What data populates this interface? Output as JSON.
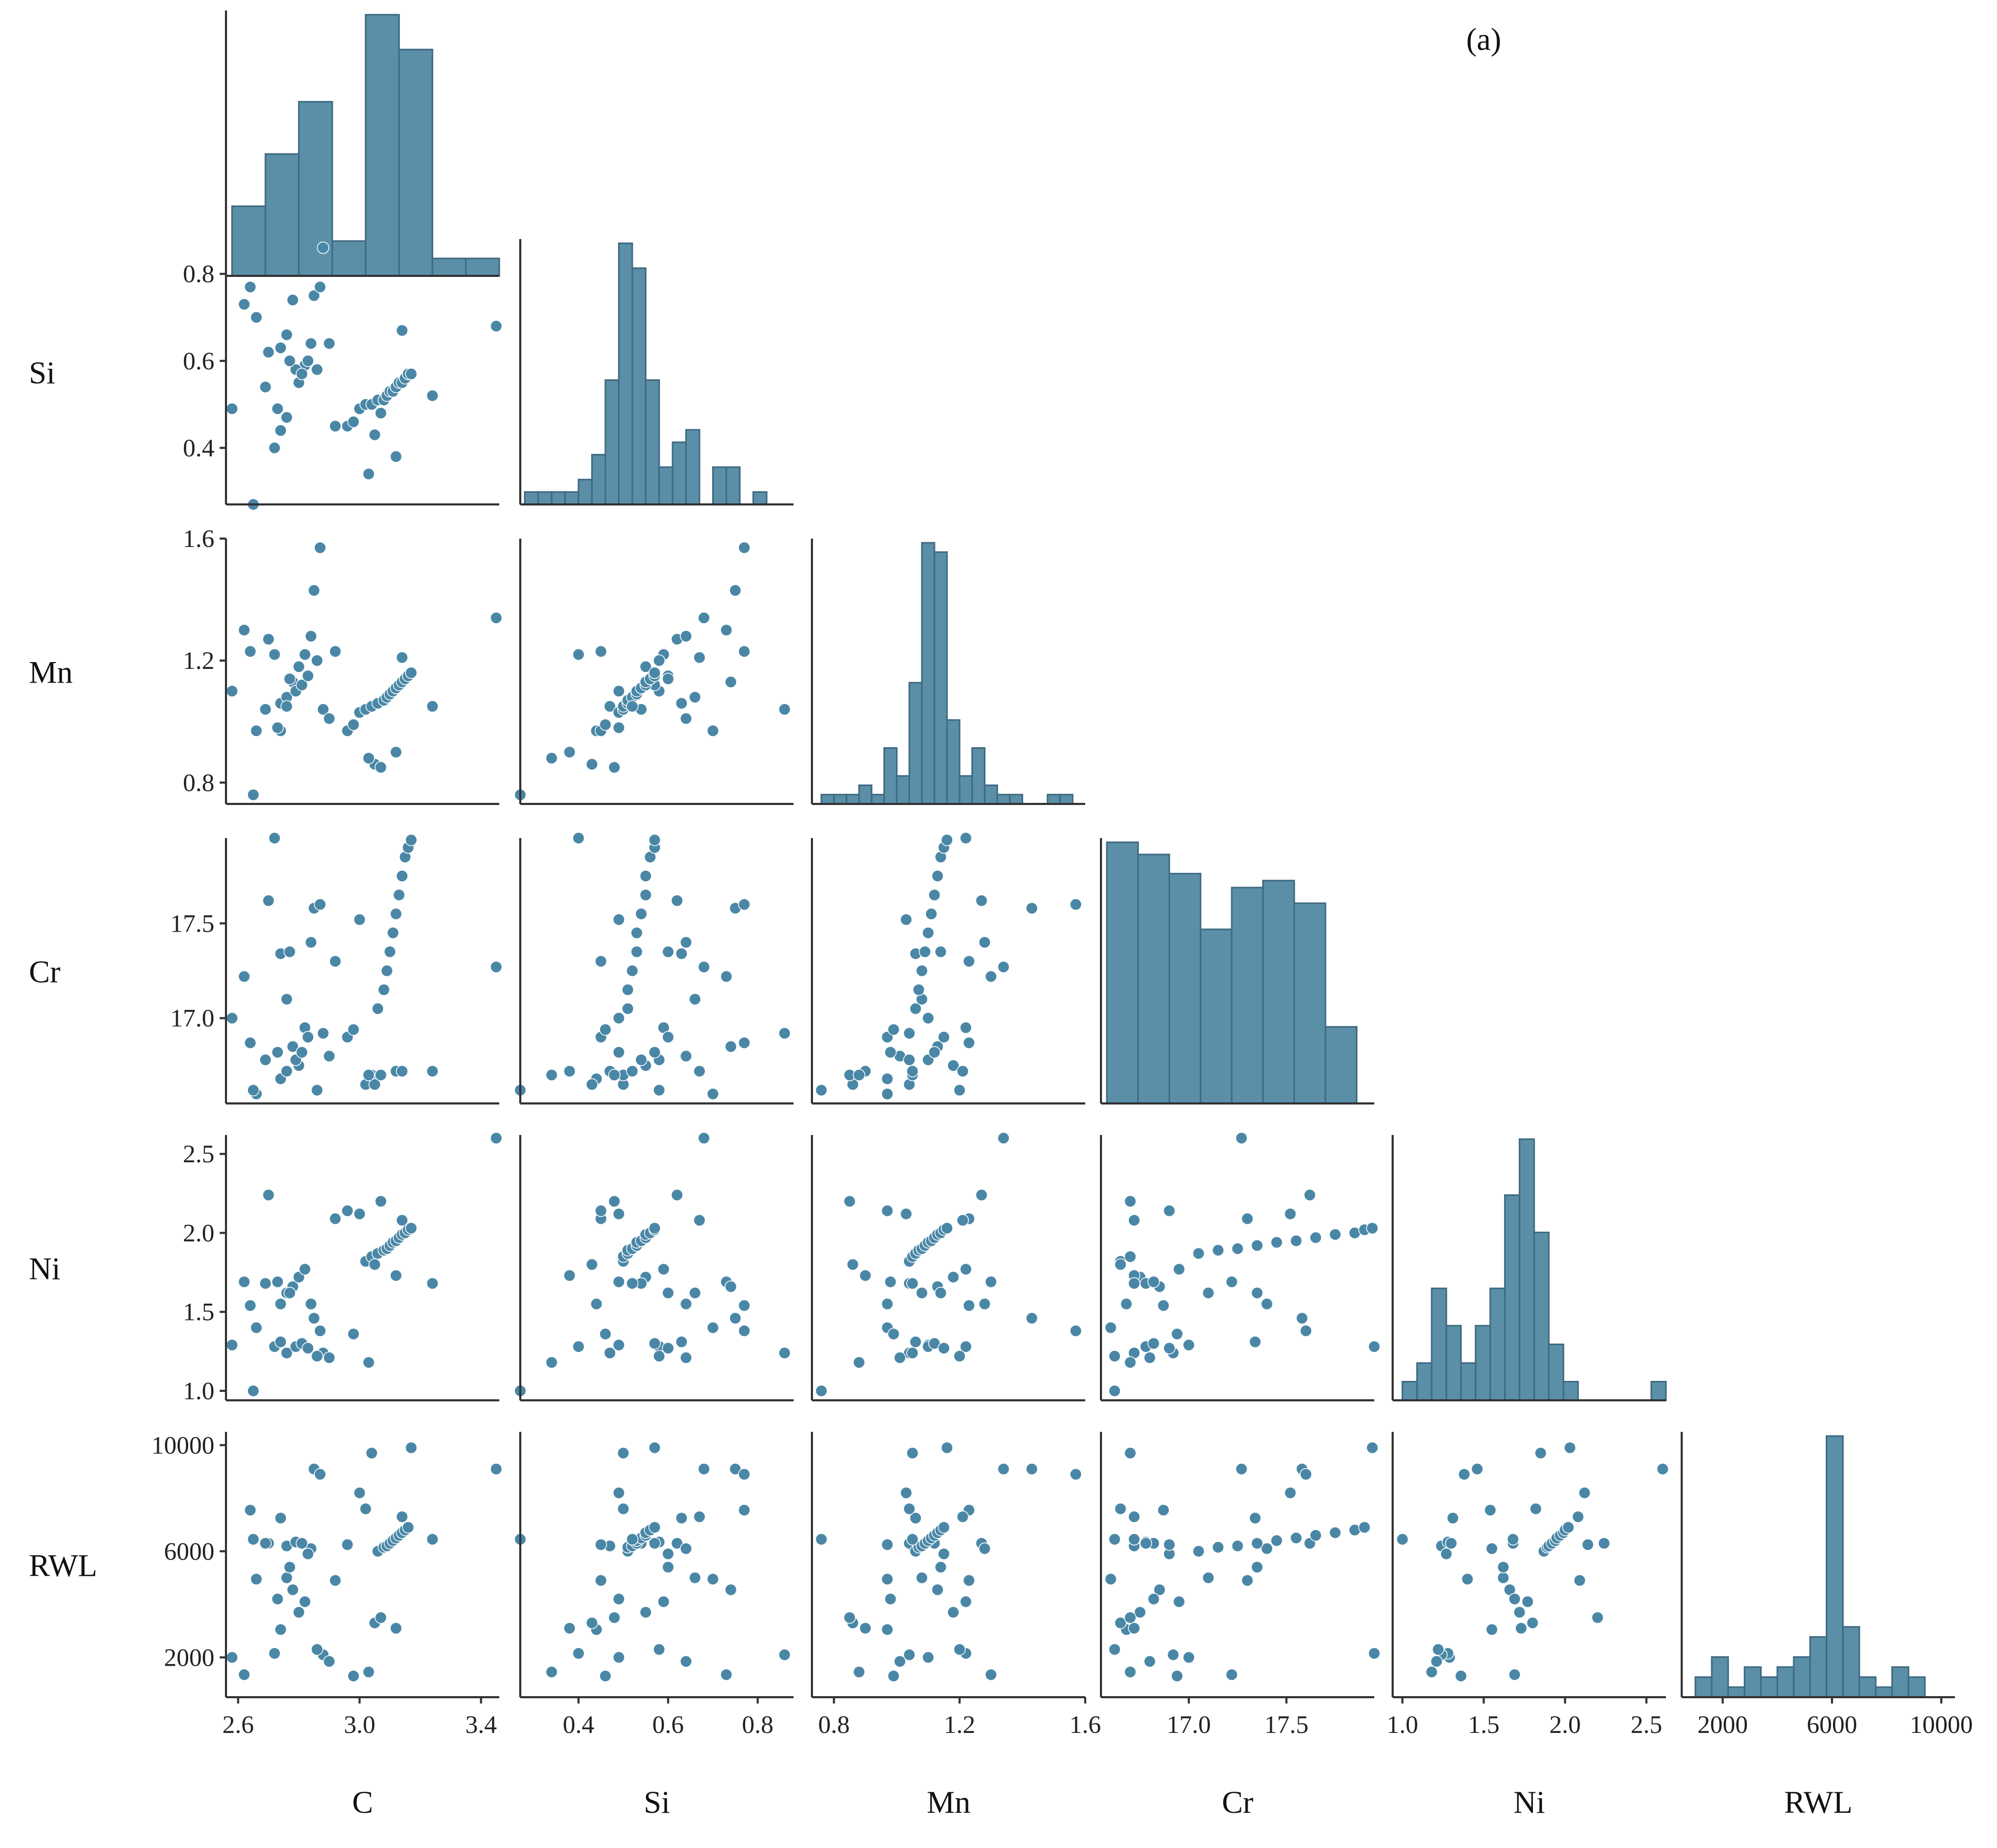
{
  "panel_label": "(a)",
  "colors": {
    "bar": "#5b8fa8",
    "point": "#4a87a6",
    "axis": "#333333"
  },
  "variables": [
    "C",
    "Si",
    "Mn",
    "Cr",
    "Ni",
    "RWL"
  ],
  "chart_data": {
    "type": "pairplot",
    "corner": true,
    "axes": {
      "C": {
        "label": "C",
        "range": [
          2.56,
          3.46
        ],
        "ticks": [
          2.6,
          3.0,
          3.4
        ],
        "tick_labels": [
          "2.6",
          "3.0",
          "3.4"
        ]
      },
      "Si": {
        "label": "Si",
        "range": [
          0.27,
          0.88
        ],
        "ticks": [
          0.4,
          0.6,
          0.8
        ],
        "tick_labels": [
          "0.4",
          "0.6",
          "0.8"
        ]
      },
      "Mn": {
        "label": "Mn",
        "range": [
          0.73,
          1.6
        ],
        "ticks": [
          0.8,
          1.2,
          1.6
        ],
        "tick_labels": [
          "0.8",
          "1.2",
          "1.6"
        ]
      },
      "Cr": {
        "label": "Cr",
        "range": [
          16.55,
          17.95
        ],
        "ticks": [
          17.0,
          17.5
        ],
        "tick_labels": [
          "17.0",
          "17.5"
        ]
      },
      "Ni": {
        "label": "Ni",
        "range": [
          0.94,
          2.62
        ],
        "ticks": [
          1.0,
          1.5,
          2.0,
          2.5
        ],
        "tick_labels": [
          "1.0",
          "1.5",
          "2.0",
          "2.5"
        ]
      },
      "RWL": {
        "label": "RWL",
        "range": [
          500,
          10500
        ],
        "ticks": [
          2000,
          6000,
          10000
        ],
        "tick_labels": [
          "2000",
          "6000",
          "10000"
        ]
      }
    },
    "histograms": {
      "C": {
        "edges": [
          2.58,
          2.69,
          2.8,
          2.91,
          3.02,
          3.13,
          3.24,
          3.35,
          3.46
        ],
        "counts": [
          4,
          7,
          10,
          2,
          15,
          13,
          1,
          1
        ]
      },
      "Si": {
        "edges": [
          0.28,
          0.31,
          0.34,
          0.37,
          0.4,
          0.43,
          0.46,
          0.49,
          0.52,
          0.55,
          0.58,
          0.61,
          0.64,
          0.67,
          0.7,
          0.73,
          0.76,
          0.79,
          0.82,
          0.85
        ],
        "counts": [
          1,
          1,
          1,
          1,
          2,
          4,
          10,
          21,
          19,
          10,
          3,
          5,
          6,
          0,
          3,
          3,
          0,
          1,
          0
        ]
      },
      "Mn": {
        "edges": [
          0.76,
          0.8,
          0.84,
          0.88,
          0.92,
          0.96,
          1.0,
          1.04,
          1.08,
          1.12,
          1.16,
          1.2,
          1.24,
          1.28,
          1.32,
          1.36,
          1.4,
          1.44,
          1.48,
          1.52,
          1.56
        ],
        "counts": [
          1,
          1,
          1,
          2,
          1,
          6,
          3,
          13,
          28,
          27,
          9,
          3,
          6,
          2,
          1,
          1,
          0,
          0,
          1,
          1
        ]
      },
      "Cr": {
        "edges": [
          16.58,
          16.74,
          16.9,
          17.06,
          17.22,
          17.38,
          17.54,
          17.7,
          17.86
        ],
        "counts": [
          15,
          14.3,
          13.2,
          10,
          12.4,
          12.8,
          11.5,
          4.4
        ]
      },
      "Ni": {
        "edges": [
          1.0,
          1.09,
          1.18,
          1.27,
          1.36,
          1.45,
          1.54,
          1.63,
          1.72,
          1.81,
          1.9,
          1.99,
          2.08,
          2.17,
          2.26,
          2.35,
          2.44,
          2.53,
          2.62
        ],
        "counts": [
          1,
          2,
          6,
          4,
          2,
          4,
          6,
          11,
          14,
          9,
          3,
          1,
          0,
          0,
          0,
          0,
          0,
          1
        ]
      },
      "RWL": {
        "edges": [
          1000,
          1600,
          2200,
          2800,
          3400,
          4000,
          4600,
          5200,
          5800,
          6400,
          7000,
          7600,
          8200,
          8800,
          9400,
          10000
        ],
        "counts": [
          2,
          4,
          1,
          3,
          2,
          3,
          4,
          6,
          26,
          7,
          2,
          1,
          3,
          2,
          0
        ]
      }
    },
    "samples": {
      "C": [
        2.62,
        2.64,
        2.66,
        2.58,
        2.7,
        2.72,
        2.74,
        2.76,
        2.78,
        2.8,
        2.82,
        2.84,
        2.85,
        2.87,
        2.88,
        2.9,
        2.74,
        2.76,
        2.79,
        2.81,
        2.83,
        2.86,
        2.92,
        2.65,
        2.69,
        2.73,
        2.77,
        2.96,
        3.0,
        3.02,
        3.04,
        3.06,
        3.08,
        3.09,
        3.1,
        3.11,
        3.12,
        3.13,
        3.14,
        3.15,
        3.16,
        3.17,
        3.05,
        3.07,
        3.12,
        3.24,
        3.45,
        2.98,
        3.03,
        3.14
      ],
      "Si": [
        0.73,
        0.77,
        0.7,
        0.49,
        0.62,
        0.4,
        0.63,
        0.66,
        0.74,
        0.55,
        0.59,
        0.64,
        0.75,
        0.77,
        0.86,
        0.64,
        0.44,
        0.47,
        0.58,
        0.57,
        0.6,
        0.58,
        0.45,
        0.27,
        0.54,
        0.49,
        0.6,
        0.45,
        0.49,
        0.5,
        0.5,
        0.51,
        0.51,
        0.52,
        0.53,
        0.53,
        0.54,
        0.55,
        0.55,
        0.56,
        0.57,
        0.57,
        0.43,
        0.48,
        0.38,
        0.52,
        0.68,
        0.46,
        0.34,
        0.67
      ],
      "Mn": [
        1.3,
        1.23,
        0.97,
        1.1,
        1.27,
        1.22,
        1.06,
        1.08,
        1.13,
        1.18,
        1.22,
        1.28,
        1.43,
        1.57,
        1.04,
        1.01,
        0.97,
        1.05,
        1.1,
        1.12,
        1.15,
        1.2,
        1.23,
        0.76,
        1.04,
        0.98,
        1.14,
        0.97,
        1.03,
        1.04,
        1.05,
        1.06,
        1.07,
        1.08,
        1.09,
        1.1,
        1.11,
        1.12,
        1.13,
        1.14,
        1.15,
        1.16,
        0.86,
        0.85,
        0.9,
        1.05,
        1.34,
        0.99,
        0.88,
        1.21
      ],
      "Cr": [
        17.22,
        16.87,
        16.6,
        17.0,
        17.62,
        17.95,
        17.34,
        17.1,
        16.85,
        16.75,
        16.95,
        17.4,
        17.58,
        17.6,
        16.92,
        16.8,
        16.68,
        16.72,
        16.78,
        16.82,
        16.9,
        16.62,
        17.3,
        16.62,
        16.78,
        16.82,
        17.35,
        16.9,
        17.52,
        16.65,
        16.7,
        17.05,
        17.15,
        17.25,
        17.35,
        17.45,
        17.55,
        17.65,
        17.75,
        17.85,
        17.9,
        17.94,
        16.65,
        16.7,
        16.72,
        16.72,
        17.27,
        16.94,
        16.7,
        16.72
      ],
      "Ni": [
        1.69,
        1.54,
        1.4,
        1.29,
        2.24,
        1.28,
        1.31,
        1.62,
        1.66,
        1.72,
        1.77,
        1.55,
        1.46,
        1.38,
        1.24,
        1.21,
        1.55,
        1.24,
        1.28,
        1.3,
        1.27,
        1.22,
        2.09,
        1.0,
        1.68,
        1.69,
        1.62,
        2.14,
        2.12,
        1.82,
        1.85,
        1.87,
        1.89,
        1.9,
        1.92,
        1.94,
        1.95,
        1.97,
        1.99,
        2.0,
        2.02,
        2.03,
        1.8,
        2.2,
        1.73,
        1.68,
        2.6,
        1.36,
        1.18,
        2.08
      ],
      "RWL": [
        1350,
        7550,
        4950,
        2000,
        6300,
        2150,
        7250,
        5000,
        4550,
        3700,
        4100,
        6100,
        9100,
        8900,
        2100,
        1850,
        3050,
        6200,
        6350,
        6300,
        5900,
        2300,
        4900,
        6450,
        6300,
        4200,
        5400,
        6250,
        8200,
        7600,
        9700,
        6000,
        6150,
        6200,
        6300,
        6400,
        6500,
        6600,
        6700,
        6800,
        6900,
        9900,
        3300,
        3500,
        3100,
        6450,
        9100,
        1300,
        1450,
        7300
      ]
    }
  }
}
